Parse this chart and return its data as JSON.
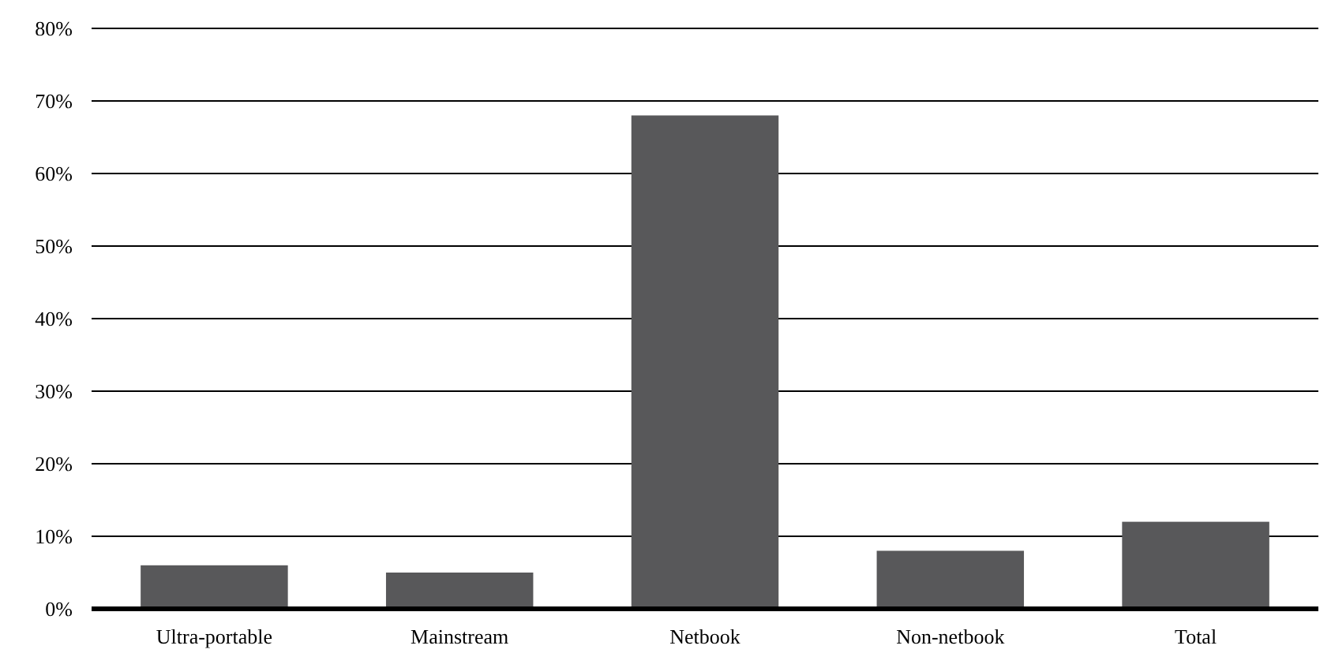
{
  "chart_data": {
    "type": "bar",
    "categories": [
      "Ultra-portable",
      "Mainstream",
      "Netbook",
      "Non-netbook",
      "Total"
    ],
    "values": [
      6,
      5,
      68,
      8,
      12
    ],
    "color": "#58585a",
    "ylim": [
      0,
      80
    ],
    "yticks": [
      {
        "value": 0,
        "label": "0%"
      },
      {
        "value": 10,
        "label": "10%"
      },
      {
        "value": 20,
        "label": "20%"
      },
      {
        "value": 30,
        "label": "30%"
      },
      {
        "value": 40,
        "label": "40%"
      },
      {
        "value": 50,
        "label": "50%"
      },
      {
        "value": 60,
        "label": "60%"
      },
      {
        "value": 70,
        "label": "70%"
      },
      {
        "value": 80,
        "label": "80%"
      }
    ],
    "grid": "y"
  }
}
